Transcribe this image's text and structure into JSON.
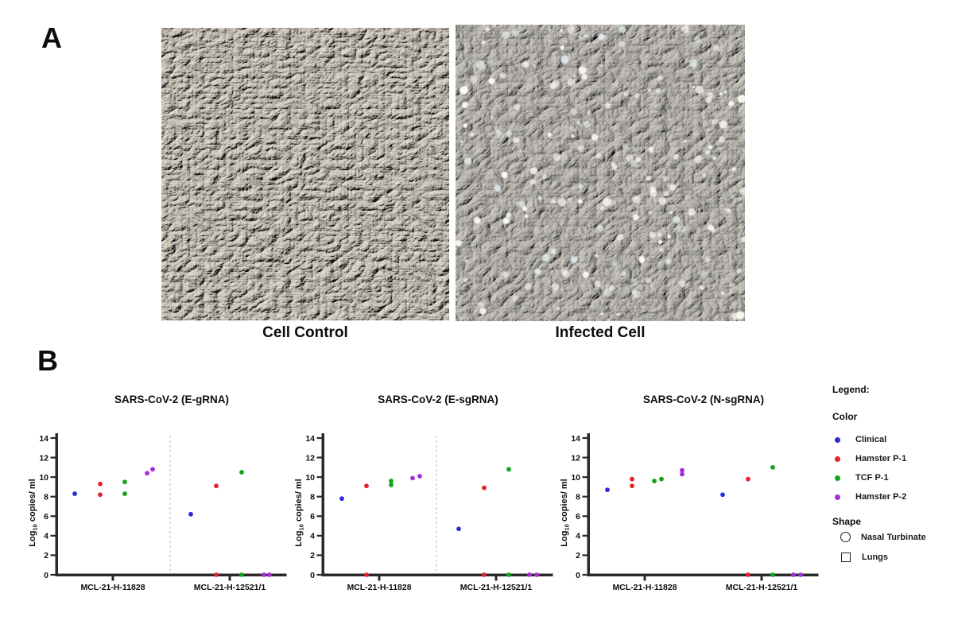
{
  "panel_a": {
    "label": "A",
    "images": [
      {
        "name": "cell-control-micrograph",
        "caption": "Cell Control"
      },
      {
        "name": "infected-cell-micrograph",
        "caption": "Infected Cell"
      }
    ]
  },
  "panel_b": {
    "label": "B",
    "legend": {
      "title": "Legend:",
      "color_heading": "Color",
      "color_items": [
        {
          "label": "Clinical",
          "color": "#2b2bd8"
        },
        {
          "label": "Hamster P-1",
          "color": "#e42328"
        },
        {
          "label": "TCF P-1",
          "color": "#13a41d"
        },
        {
          "label": "Hamster P-2",
          "color": "#a32ddc"
        }
      ],
      "shape_heading": "Shape",
      "shape_items": [
        {
          "label": "Nasal Turbinate",
          "shape": "circle"
        },
        {
          "label": "Lungs",
          "shape": "square"
        }
      ]
    }
  },
  "chart_data": [
    {
      "type": "scatter",
      "title": "SARS-CoV-2 (E-gRNA)",
      "ylabel": "Log10 copies/ ml",
      "ylim": [
        0,
        14
      ],
      "yticks": [
        0,
        2,
        4,
        6,
        8,
        10,
        12,
        14
      ],
      "categories": [
        "MCL-21-H-11828",
        "MCL-21-H-12521/1"
      ],
      "group_divider": true,
      "series": [
        {
          "name": "Clinical",
          "color": "#2b2bd8",
          "points": [
            {
              "group": 0,
              "value": 8.3,
              "dx": -48
            },
            {
              "group": 1,
              "value": 6.2,
              "dx": -49
            }
          ]
        },
        {
          "name": "Hamster P-1",
          "color": "#e42328",
          "points": [
            {
              "group": 0,
              "value": 9.3,
              "dx": -16
            },
            {
              "group": 0,
              "value": 8.2,
              "dx": -16
            },
            {
              "group": 1,
              "value": 9.1,
              "dx": -17
            },
            {
              "group": 1,
              "value": 0,
              "dx": -17
            }
          ]
        },
        {
          "name": "TCF P-1",
          "color": "#13a41d",
          "points": [
            {
              "group": 0,
              "value": 9.5,
              "dx": 15
            },
            {
              "group": 0,
              "value": 8.3,
              "dx": 15
            },
            {
              "group": 1,
              "value": 10.5,
              "dx": 15
            },
            {
              "group": 1,
              "value": 0,
              "dx": 15
            }
          ]
        },
        {
          "name": "Hamster P-2",
          "color": "#a32ddc",
          "points": [
            {
              "group": 0,
              "value": 10.4,
              "dx": 43
            },
            {
              "group": 0,
              "value": 10.8,
              "dx": 50
            },
            {
              "group": 1,
              "value": 0,
              "dx": 43
            },
            {
              "group": 1,
              "value": 0,
              "dx": 50
            }
          ]
        }
      ]
    },
    {
      "type": "scatter",
      "title": "SARS-CoV-2 (E-sgRNA)",
      "ylabel": "Log10 copies/ ml",
      "ylim": [
        0,
        14
      ],
      "yticks": [
        0,
        2,
        4,
        6,
        8,
        10,
        12,
        14
      ],
      "categories": [
        "MCL-21-H-11828",
        "MCL-21-H-12521/1"
      ],
      "group_divider": true,
      "series": [
        {
          "name": "Clinical",
          "color": "#2b2bd8",
          "points": [
            {
              "group": 0,
              "value": 7.8,
              "dx": -47
            },
            {
              "group": 1,
              "value": 4.7,
              "dx": -47
            }
          ]
        },
        {
          "name": "Hamster P-1",
          "color": "#e42328",
          "points": [
            {
              "group": 0,
              "value": 9.1,
              "dx": -16
            },
            {
              "group": 0,
              "value": 0,
              "dx": -16
            },
            {
              "group": 1,
              "value": 8.9,
              "dx": -15
            },
            {
              "group": 1,
              "value": 0,
              "dx": -15
            }
          ]
        },
        {
          "name": "TCF P-1",
          "color": "#13a41d",
          "points": [
            {
              "group": 0,
              "value": 9.2,
              "dx": 15
            },
            {
              "group": 0,
              "value": 9.6,
              "dx": 15
            },
            {
              "group": 1,
              "value": 10.8,
              "dx": 16
            },
            {
              "group": 1,
              "value": 0,
              "dx": 16
            }
          ]
        },
        {
          "name": "Hamster P-2",
          "color": "#a32ddc",
          "points": [
            {
              "group": 0,
              "value": 9.9,
              "dx": 42
            },
            {
              "group": 0,
              "value": 10.1,
              "dx": 51
            },
            {
              "group": 1,
              "value": 0,
              "dx": 42
            },
            {
              "group": 1,
              "value": 0,
              "dx": 51
            }
          ]
        }
      ]
    },
    {
      "type": "scatter",
      "title": "SARS-CoV-2 (N-sgRNA)",
      "ylabel": "Log10 copies/ ml",
      "ylim": [
        0,
        14
      ],
      "yticks": [
        0,
        2,
        4,
        6,
        8,
        10,
        12,
        14
      ],
      "categories": [
        "MCL-21-H-11828",
        "MCL-21-H-12521/1"
      ],
      "group_divider": false,
      "series": [
        {
          "name": "Clinical",
          "color": "#2b2bd8",
          "points": [
            {
              "group": 0,
              "value": 8.7,
              "dx": -47
            },
            {
              "group": 1,
              "value": 8.2,
              "dx": -49
            }
          ]
        },
        {
          "name": "Hamster P-1",
          "color": "#e42328",
          "points": [
            {
              "group": 0,
              "value": 9.8,
              "dx": -16
            },
            {
              "group": 0,
              "value": 9.1,
              "dx": -16
            },
            {
              "group": 1,
              "value": 9.8,
              "dx": -17
            },
            {
              "group": 1,
              "value": 0,
              "dx": -17
            }
          ]
        },
        {
          "name": "TCF P-1",
          "color": "#13a41d",
          "points": [
            {
              "group": 0,
              "value": 9.6,
              "dx": 12
            },
            {
              "group": 0,
              "value": 9.8,
              "dx": 21
            },
            {
              "group": 1,
              "value": 11.0,
              "dx": 14
            },
            {
              "group": 1,
              "value": 0,
              "dx": 14
            }
          ]
        },
        {
          "name": "Hamster P-2",
          "color": "#a32ddc",
          "points": [
            {
              "group": 0,
              "value": 10.3,
              "dx": 47
            },
            {
              "group": 0,
              "value": 10.7,
              "dx": 47
            },
            {
              "group": 1,
              "value": 0,
              "dx": 40
            },
            {
              "group": 1,
              "value": 0,
              "dx": 49
            }
          ]
        }
      ]
    }
  ]
}
